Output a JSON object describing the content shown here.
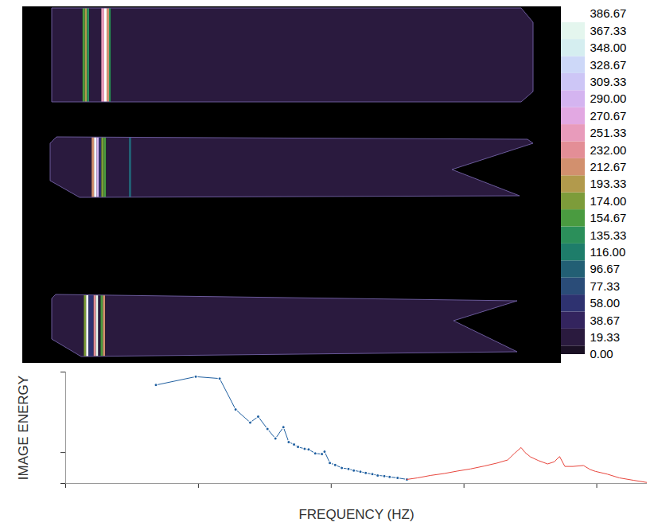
{
  "chart_data": [
    {
      "type": "heatmap",
      "panels": [
        {
          "bins": [
            0,
            6.4,
            6.9,
            7.3,
            7.8,
            10.3,
            10.9,
            11.4,
            11.9,
            12.3,
            100
          ],
          "values": [
            12,
            154.67,
            193.33,
            140,
            12,
            251,
            386.67,
            212,
            135,
            12
          ]
        },
        {
          "bins": [
            0,
            8.6,
            9.1,
            9.6,
            10.1,
            10.6,
            11.1,
            11.6,
            16.3,
            16.8,
            100
          ],
          "values": [
            12,
            212,
            386.67,
            290,
            60,
            174,
            154.67,
            12,
            96,
            12
          ]
        },
        {
          "bins": [
            0,
            6.9,
            7.4,
            7.9,
            9.0,
            9.5,
            10.0,
            10.5,
            11.0,
            11.5,
            100
          ],
          "values": [
            12,
            174,
            386.67,
            60,
            232,
            367,
            12,
            154.67,
            212,
            12
          ]
        }
      ],
      "colorbar": {
        "range": [
          0,
          386.67
        ],
        "ticks": [
          {
            "value": 0,
            "label": "0.00"
          },
          19.33,
          38.67,
          {
            "value": 58,
            "label": "58.00"
          },
          77.33,
          96.67,
          {
            "value": 116,
            "label": "116.00"
          },
          135.33,
          154.67,
          {
            "value": 174,
            "label": "174.00"
          },
          193.33,
          212.67,
          {
            "value": 232,
            "label": "232.00"
          },
          251.33,
          270.67,
          {
            "value": 290,
            "label": "290.00"
          },
          309.33,
          328.67,
          {
            "value": 348,
            "label": "348.00"
          },
          367.33,
          386.67
        ],
        "colors": [
          "#1a1024",
          "#2a1a3e",
          "#33245e",
          "#2e3270",
          "#2a4c78",
          "#225f74",
          "#1e7d6a",
          "#2b8f5a",
          "#4a9b40",
          "#7d9c3a",
          "#b29a4c",
          "#d2906e",
          "#e38e96",
          "#e89bbb",
          "#e2a8e2",
          "#d4b4f0",
          "#cdc6f6",
          "#cdd8f8",
          "#d5eef0",
          "#e4f6ee",
          "#ffffff"
        ]
      }
    },
    {
      "type": "line",
      "xlabel": "FREQUENCY (HZ)",
      "ylabel": "IMAGE ENERGY",
      "xlim": [
        0,
        4.38
      ],
      "xticks": [
        0,
        1,
        2,
        3,
        4
      ],
      "ylim": [
        0,
        3.6
      ],
      "yticks": [
        0,
        1,
        3.6
      ],
      "tick_labels": false,
      "series": [
        {
          "color": "#1f5fa0",
          "marker": "circle",
          "x": [
            0.68,
            0.98,
            1.16,
            1.28,
            1.39,
            1.45,
            1.52,
            1.58,
            1.64,
            1.68,
            1.72,
            1.75,
            1.8,
            1.83,
            1.88,
            1.93,
            1.95,
            1.99,
            2.03,
            2.08,
            2.13,
            2.17,
            2.22,
            2.26,
            2.31,
            2.35,
            2.4,
            2.44,
            2.5,
            2.57
          ],
          "values": [
            3.18,
            3.45,
            3.39,
            2.39,
            1.97,
            2.16,
            1.76,
            1.45,
            1.82,
            1.34,
            1.26,
            1.18,
            1.12,
            1.1,
            0.97,
            0.95,
            1.03,
            0.66,
            0.6,
            0.5,
            0.47,
            0.42,
            0.38,
            0.34,
            0.3,
            0.26,
            0.24,
            0.21,
            0.18,
            0.13
          ]
        },
        {
          "color": "#e8453c",
          "marker": "none",
          "x": [
            2.57,
            2.65,
            2.75,
            2.85,
            2.95,
            3.05,
            3.15,
            3.25,
            3.33,
            3.38,
            3.43,
            3.46,
            3.5,
            3.56,
            3.63,
            3.68,
            3.72,
            3.76,
            3.82,
            3.9,
            3.95,
            3.99,
            4.08,
            4.17,
            4.28,
            4.38
          ],
          "values": [
            0.13,
            0.18,
            0.26,
            0.32,
            0.4,
            0.47,
            0.56,
            0.66,
            0.76,
            0.97,
            1.16,
            1.0,
            0.86,
            0.74,
            0.63,
            0.7,
            0.87,
            0.55,
            0.55,
            0.58,
            0.45,
            0.39,
            0.3,
            0.18,
            0.1,
            0.03
          ]
        }
      ]
    }
  ]
}
